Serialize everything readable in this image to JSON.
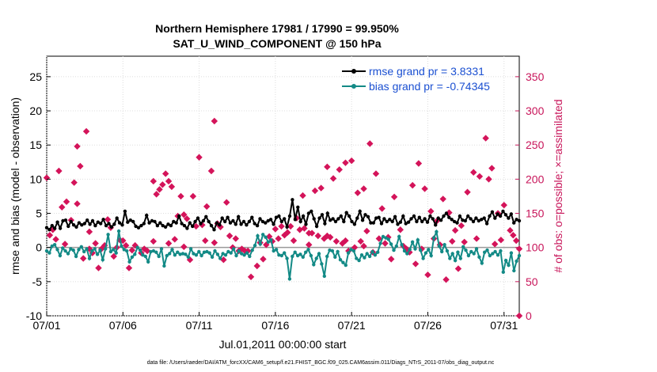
{
  "chart_data": {
    "type": "line",
    "title": "Northern Hemisphere 17981 / 17990 = 99.950%",
    "subtitle": "SAT_U_WIND_COMPONENT @ 150 hPa",
    "xlabel": "Jul.01,2011 00:00:00 start",
    "ylabel": "rmse and bias (model - observation)",
    "y2label": "# of obs: o=possible; ×=assimilated",
    "footer": "data file: /Users/raeder/DAI/ATM_forcXX/CAM6_setup/f.e21.FHIST_BGC.f09_025.CAM6assim.011/Diags_NTrS_2011-07/obs_diag_output.nc",
    "xlim": [
      1,
      32
    ],
    "ylim": [
      -10,
      28
    ],
    "y2lim": [
      0,
      380
    ],
    "xticks": [
      1,
      6,
      11,
      16,
      21,
      26,
      31
    ],
    "xticklabels": [
      "07/01",
      "07/06",
      "07/11",
      "07/16",
      "07/21",
      "07/26",
      "07/31"
    ],
    "yticks": [
      -10,
      -5,
      0,
      5,
      10,
      15,
      20,
      25
    ],
    "y2ticks": [
      0,
      50,
      100,
      150,
      200,
      250,
      300,
      350
    ],
    "legend_position": "top-right",
    "colors": {
      "rmse": "#000000",
      "bias": "#138a86",
      "obs": "#d4145a",
      "zero": "#9a9a9a",
      "legend_text": "#1a4fd1"
    },
    "series": [
      {
        "name": "rmse grand pr = 3.8331",
        "key": "rmse",
        "values": [
          2.9,
          2.6,
          3.2,
          2.8,
          3.7,
          2.8,
          3.9,
          4.0,
          3.1,
          3.8,
          3.3,
          3.0,
          3.6,
          3.3,
          3.5,
          4.0,
          3.4,
          3.9,
          3.2,
          3.7,
          3.5,
          4.1,
          3.2,
          3.5,
          3.0,
          3.4,
          4.3,
          3.6,
          3.3,
          5.3,
          3.7,
          4.0,
          3.8,
          3.1,
          2.9,
          3.2,
          3.5,
          4.7,
          3.6,
          3.9,
          3.8,
          3.2,
          3.6,
          3.2,
          3.0,
          3.4,
          3.2,
          3.8,
          3.6,
          4.6,
          3.5,
          3.2,
          2.8,
          3.6,
          3.1,
          3.8,
          4.3,
          3.5,
          3.9,
          4.5,
          3.8,
          3.2,
          2.6,
          3.6,
          3.3,
          4.3,
          3.8,
          4.4,
          3.6,
          3.9,
          3.4,
          4.5,
          3.4,
          3.8,
          3.3,
          3.8,
          4.4,
          3.5,
          3.2,
          4.2,
          3.8,
          3.6,
          3.9,
          4.1,
          3.4,
          4.4,
          4.6,
          3.8,
          4.2,
          3.0,
          4.6,
          7.0,
          4.1,
          5.9,
          3.8,
          4.6,
          3.4,
          5.0,
          5.3,
          4.2,
          3.1,
          4.3,
          4.8,
          3.5,
          5.0,
          4.0,
          4.2,
          3.8,
          4.2,
          4.6,
          3.8,
          5.1,
          4.6,
          3.8,
          3.4,
          4.3,
          5.3,
          4.0,
          4.8,
          4.5,
          3.6,
          3.6,
          4.3,
          4.4,
          3.5,
          4.2,
          3.8,
          4.1,
          3.8,
          4.5,
          3.4,
          3.7,
          4.6,
          3.5,
          3.7,
          4.2,
          4.6,
          3.8,
          4.4,
          3.8,
          4.2,
          3.7,
          4.6,
          4.2,
          3.3,
          4.3,
          4.0,
          4.6,
          5.0,
          4.4,
          4.1,
          3.8,
          3.6,
          4.6,
          4.0,
          3.9,
          4.6,
          4.2,
          3.8,
          4.3,
          3.9,
          4.1,
          4.3,
          3.5,
          4.6,
          5.2,
          4.3,
          4.9,
          4.6,
          5.3,
          4.8,
          4.3,
          4.9,
          3.6,
          4.1,
          3.9
        ]
      },
      {
        "name": "bias grand pr = -0.74345",
        "key": "bias",
        "values": [
          -0.5,
          -0.8,
          0.2,
          0.4,
          -0.3,
          -1.2,
          -0.1,
          -0.5,
          -0.9,
          -0.2,
          -0.4,
          -1.3,
          -0.3,
          0.1,
          -0.6,
          -0.2,
          -1.6,
          -0.5,
          -0.2,
          -1.0,
          -0.4,
          -1.8,
          -0.2,
          1.9,
          -0.6,
          -0.3,
          -0.8,
          2.4,
          0.2,
          -0.3,
          -0.5,
          -2.1,
          -1.4,
          -1.0,
          0.0,
          -0.4,
          -1.1,
          -1.3,
          -2.1,
          -0.6,
          -0.5,
          -0.7,
          -1.3,
          -0.2,
          -2.7,
          -1.2,
          -0.9,
          -0.3,
          -1.1,
          -0.7,
          -1.0,
          -0.9,
          -1.0,
          -1.4,
          -0.2,
          -0.9,
          -1.1,
          -0.6,
          -1.2,
          -0.7,
          -0.6,
          -0.8,
          -1.4,
          -0.5,
          -1.0,
          -1.6,
          -0.9,
          -1.1,
          -0.6,
          -0.8,
          -0.2,
          -1.2,
          -0.5,
          -0.9,
          -1.1,
          -0.8,
          -1.3,
          -0.4,
          0.3,
          1.7,
          0.5,
          1.9,
          1.5,
          0.8,
          1.1,
          -0.5,
          -0.3,
          -1.1,
          -1.2,
          -0.8,
          -1.6,
          -4.6,
          -1.3,
          -0.7,
          -1.2,
          -1.0,
          -1.4,
          -0.7,
          -0.3,
          -1.2,
          -2.5,
          -1.6,
          -0.9,
          -2.4,
          -4.2,
          -1.3,
          -0.4,
          -0.5,
          -1.4,
          -0.6,
          -1.8,
          -2.2,
          -2.6,
          -0.8,
          -0.3,
          -0.5,
          -1.6,
          -1.9,
          -1.1,
          -1.5,
          -0.9,
          -1.3,
          -0.6,
          -1.1,
          -0.7,
          0.6,
          1.6,
          1.4,
          1.2,
          0.5,
          -0.4,
          0.2,
          1.6,
          0.4,
          -0.5,
          -0.9,
          -0.3,
          0.8,
          -0.2,
          1.1,
          -0.4,
          -1.6,
          -0.8,
          -0.3,
          -1.2,
          1.4,
          2.3,
          0.2,
          -0.6,
          0.4,
          -0.5,
          -1.6,
          -0.9,
          -1.9,
          -0.7,
          -1.6,
          0.1,
          -0.4,
          -1.2,
          -0.6,
          -0.9,
          -0.2,
          -1.4,
          -2.3,
          -0.7,
          -0.4,
          -1.2,
          -0.9,
          -0.6,
          -1.1,
          -0.5,
          -3.6,
          -1.9,
          -2.6,
          -0.8,
          -3.4,
          -2.0,
          -1.2
        ]
      },
      {
        "name": "observations assimilated",
        "key": "obs",
        "points": [
          [
            1.0,
            202
          ],
          [
            1.8,
            212
          ],
          [
            2.0,
            159
          ],
          [
            2.3,
            167
          ],
          [
            2.8,
            195
          ],
          [
            3.0,
            248
          ],
          [
            3.2,
            219
          ],
          [
            3.4,
            84
          ],
          [
            4.0,
            92
          ],
          [
            3.6,
            270
          ],
          [
            3.8,
            123
          ],
          [
            4.4,
            70
          ],
          [
            4.6,
            98
          ],
          [
            5.0,
            141
          ],
          [
            5.4,
            87
          ],
          [
            5.8,
            111
          ],
          [
            6.0,
            110
          ],
          [
            6.4,
            70
          ],
          [
            6.8,
            103
          ],
          [
            7.2,
            92
          ],
          [
            7.6,
            95
          ],
          [
            8.0,
            197
          ],
          [
            8.2,
            178
          ],
          [
            8.4,
            185
          ],
          [
            8.6,
            192
          ],
          [
            8.8,
            208
          ],
          [
            9.0,
            197
          ],
          [
            9.2,
            189
          ],
          [
            9.6,
            146
          ],
          [
            9.8,
            175
          ],
          [
            10.0,
            148
          ],
          [
            10.2,
            142
          ],
          [
            10.4,
            82
          ],
          [
            10.6,
            175
          ],
          [
            11.0,
            232
          ],
          [
            11.2,
            133
          ],
          [
            11.5,
            160
          ],
          [
            11.8,
            212
          ],
          [
            12.0,
            285
          ],
          [
            12.2,
            135
          ],
          [
            12.4,
            130
          ],
          [
            12.8,
            166
          ],
          [
            13.0,
            117
          ],
          [
            13.4,
            113
          ],
          [
            13.6,
            95
          ],
          [
            13.8,
            98
          ],
          [
            14.0,
            95
          ],
          [
            14.4,
            57
          ],
          [
            14.8,
            73
          ],
          [
            15.0,
            107
          ],
          [
            15.2,
            83
          ],
          [
            15.6,
            116
          ],
          [
            16.0,
            127
          ],
          [
            16.4,
            131
          ],
          [
            16.8,
            122
          ],
          [
            17.0,
            131
          ],
          [
            17.2,
            110
          ],
          [
            17.4,
            143
          ],
          [
            17.6,
            126
          ],
          [
            17.8,
            176
          ],
          [
            18.2,
            104
          ],
          [
            18.6,
            183
          ],
          [
            19.0,
            187
          ],
          [
            19.4,
            218
          ],
          [
            19.8,
            201
          ],
          [
            20.2,
            214
          ],
          [
            20.6,
            224
          ],
          [
            21.0,
            227
          ],
          [
            21.4,
            180
          ],
          [
            21.8,
            186
          ],
          [
            22.2,
            252
          ],
          [
            22.6,
            208
          ],
          [
            23.0,
            157
          ],
          [
            23.4,
            115
          ],
          [
            23.8,
            174
          ],
          [
            24.2,
            126
          ],
          [
            24.6,
            98
          ],
          [
            25.0,
            191
          ],
          [
            25.4,
            223
          ],
          [
            25.8,
            186
          ],
          [
            26.2,
            153
          ],
          [
            26.6,
            139
          ],
          [
            27.0,
            171
          ],
          [
            27.4,
            151
          ],
          [
            27.8,
            125
          ],
          [
            28.2,
            132
          ],
          [
            28.6,
            181
          ],
          [
            29.0,
            210
          ],
          [
            29.4,
            204
          ],
          [
            29.8,
            260
          ],
          [
            30.0,
            200
          ],
          [
            30.2,
            216
          ],
          [
            30.6,
            150
          ],
          [
            31.0,
            162
          ],
          [
            31.4,
            125
          ],
          [
            31.8,
            110
          ],
          [
            32.0,
            98
          ],
          [
            28.0,
            69
          ],
          [
            27.2,
            53
          ],
          [
            26.0,
            60
          ],
          [
            25.2,
            76
          ],
          [
            24.8,
            93
          ],
          [
            23.6,
            83
          ],
          [
            22.8,
            113
          ],
          [
            22.0,
            124
          ],
          [
            21.6,
            109
          ],
          [
            21.2,
            100
          ],
          [
            20.8,
            95
          ],
          [
            20.4,
            106
          ],
          [
            20.0,
            109
          ],
          [
            19.6,
            115
          ],
          [
            19.2,
            113
          ],
          [
            18.8,
            117
          ],
          [
            18.4,
            121
          ],
          [
            17.9,
            128
          ],
          [
            16.2,
            113
          ],
          [
            15.4,
            104
          ],
          [
            14.2,
            95
          ],
          [
            12.6,
            82
          ],
          [
            11.4,
            110
          ],
          [
            10.8,
            131
          ],
          [
            9.4,
            112
          ],
          [
            7.4,
            98
          ],
          [
            6.2,
            103
          ],
          [
            5.2,
            129
          ],
          [
            4.2,
            106
          ],
          [
            3.0,
            164
          ],
          [
            2.6,
            140
          ],
          [
            1.4,
            126
          ],
          [
            1.2,
            118
          ],
          [
            31.6,
            118
          ],
          [
            30.8,
            111
          ],
          [
            30.4,
            105
          ],
          [
            29.2,
            113
          ],
          [
            28.4,
            108
          ],
          [
            27.6,
            109
          ],
          [
            26.8,
            104
          ],
          [
            26.4,
            113
          ],
          [
            25.6,
            98
          ],
          [
            24.4,
            102
          ],
          [
            23.2,
            106
          ],
          [
            22.4,
            93
          ],
          [
            21.8,
            102
          ],
          [
            20.6,
            110
          ],
          [
            19.4,
            117
          ],
          [
            18.2,
            121
          ],
          [
            16.6,
            118
          ],
          [
            15.8,
            109
          ],
          [
            13.2,
            100
          ],
          [
            12.0,
            107
          ],
          [
            10.0,
            101
          ],
          [
            9.0,
            106
          ],
          [
            8.0,
            109
          ],
          [
            6.6,
            96
          ],
          [
            5.6,
            100
          ],
          [
            4.8,
            103
          ],
          [
            3.8,
            98
          ],
          [
            2.2,
            105
          ],
          [
            1.6,
            112
          ],
          [
            32.0,
            0
          ]
        ]
      }
    ]
  }
}
